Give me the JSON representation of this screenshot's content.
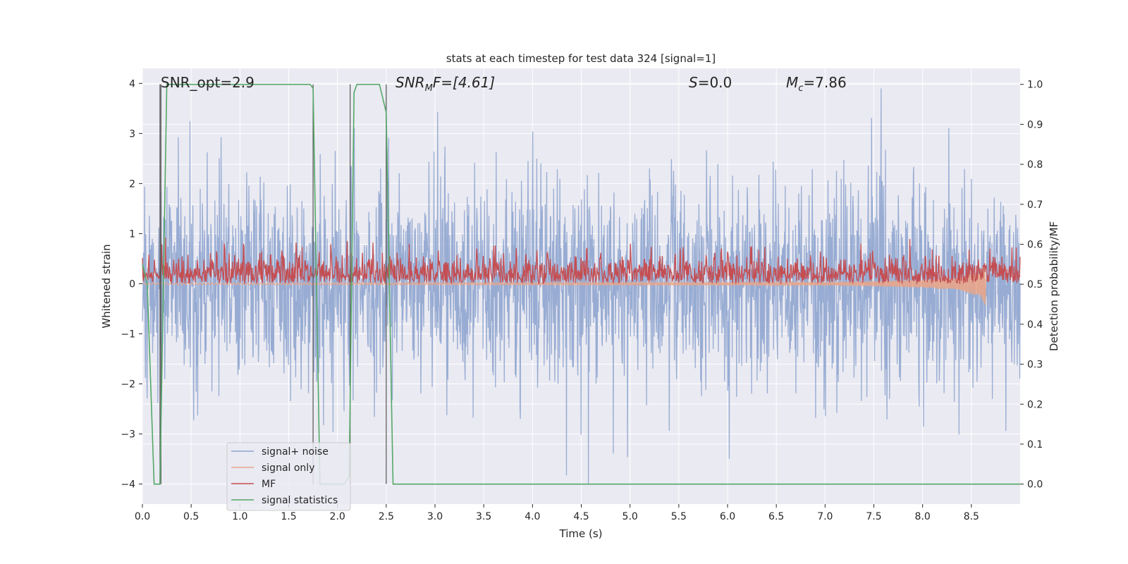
{
  "chart_data": {
    "type": "line",
    "title": "stats at each timestep for test data 324 [signal=1]",
    "xlabel": "Time (s)",
    "ylabel_left": "Whitened strain",
    "ylabel_right": "Detection probability/MF",
    "xlim": [
      0,
      9.0
    ],
    "ylim_left": [
      -4.4,
      4.3
    ],
    "ylim_right": [
      -0.05,
      1.04
    ],
    "x_ticks": [
      0.0,
      0.5,
      1.0,
      1.5,
      2.0,
      2.5,
      3.0,
      3.5,
      4.0,
      4.5,
      5.0,
      5.5,
      6.0,
      6.5,
      7.0,
      7.5,
      8.0,
      8.5
    ],
    "x_tick_labels": [
      "0.0",
      "0.5",
      "1.0",
      "1.5",
      "2.0",
      "2.5",
      "3.0",
      "3.5",
      "4.0",
      "4.5",
      "5.0",
      "5.5",
      "6.0",
      "6.5",
      "7.0",
      "7.5",
      "8.0",
      "8.5"
    ],
    "y_left_ticks": [
      -4,
      -3,
      -2,
      -1,
      0,
      1,
      2,
      3,
      4
    ],
    "y_left_tick_labels": [
      "−4",
      "−3",
      "−2",
      "−1",
      "0",
      "1",
      "2",
      "3",
      "4"
    ],
    "y_right_ticks": [
      0.0,
      0.1,
      0.2,
      0.3,
      0.4,
      0.5,
      0.6,
      0.7,
      0.8,
      0.9,
      1.0
    ],
    "y_right_tick_labels": [
      "0.0",
      "0.1",
      "0.2",
      "0.3",
      "0.4",
      "0.5",
      "0.6",
      "0.7",
      "0.8",
      "0.9",
      "1.0"
    ],
    "grid": true,
    "legend_position": "lower-left",
    "annotations": {
      "snr_opt": "SNR_opt=2.9",
      "snr_mf_main": "SNR",
      "snr_mf_sub": "M",
      "snr_mf_rest": "F=[4.61]",
      "s_main": "S",
      "s_rest": "=0.0",
      "mc_main": "M",
      "mc_sub": "c",
      "mc_rest": "=7.86"
    },
    "series": [
      {
        "name": "signal+ noise",
        "color": "#8fa5cf",
        "axis": "left",
        "description_of_values": "dense noise, approx. Gaussian",
        "sigma": 1.0,
        "range": [
          -4.0,
          3.9
        ]
      },
      {
        "name": "signal only",
        "color": "#e8a58a",
        "axis": "left",
        "x": [
          0.0,
          7.0,
          7.5,
          8.0,
          8.3,
          8.5,
          8.6,
          8.65
        ],
        "amplitude": [
          0.02,
          0.03,
          0.05,
          0.08,
          0.12,
          0.2,
          0.3,
          0.45
        ]
      },
      {
        "name": "MF",
        "color": "#c44e52",
        "axis": "right",
        "description_of_values": "noisy band above 0.5",
        "range": [
          0.5,
          0.62
        ]
      },
      {
        "name": "signal statistics",
        "color": "#55a868",
        "axis": "right",
        "x": [
          0.0,
          0.05,
          0.12,
          0.18,
          0.25,
          1.72,
          1.75,
          1.82,
          2.07,
          2.12,
          2.17,
          2.2,
          2.43,
          2.5,
          2.57,
          9.0
        ],
        "y": [
          0.55,
          0.5,
          0.0,
          0.0,
          1.0,
          1.0,
          0.99,
          0.0,
          0.0,
          0.02,
          0.98,
          1.0,
          1.0,
          0.93,
          0.0,
          0.0
        ]
      }
    ],
    "vertical_markers": {
      "color": "#555555",
      "x": [
        0.18,
        0.19,
        1.75,
        2.13,
        2.5
      ],
      "y_top": 1.0,
      "y_bottom": 0.0
    }
  }
}
